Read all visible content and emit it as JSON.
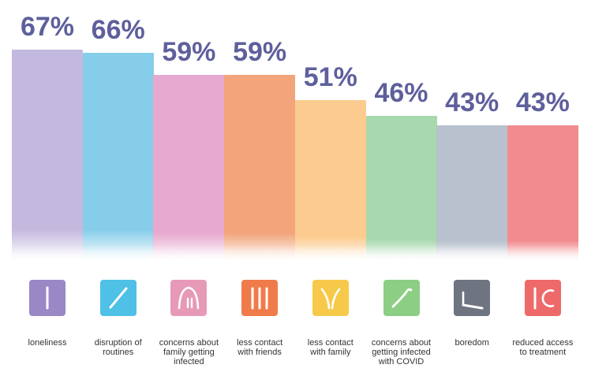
{
  "chart_data": {
    "type": "bar",
    "categories": [
      "loneliness",
      "disruption of routines",
      "concerns about family getting infected",
      "less contact with friends",
      "less contact with family",
      "concerns about getting infected with COVID",
      "boredom",
      "reduced access to treatment"
    ],
    "category_lines": [
      [
        "loneliness"
      ],
      [
        "disruption of",
        "routines"
      ],
      [
        "concerns about",
        "family getting",
        "infected"
      ],
      [
        "less contact",
        "with friends"
      ],
      [
        "less contact",
        "with family"
      ],
      [
        "concerns about",
        "getting infected",
        "with COVID"
      ],
      [
        "boredom"
      ],
      [
        "reduced access",
        "to treatment"
      ]
    ],
    "values": [
      67,
      66,
      59,
      59,
      51,
      46,
      43,
      43
    ],
    "value_labels": [
      "67%",
      "66%",
      "59%",
      "59%",
      "51%",
      "46%",
      "43%",
      "43%"
    ],
    "ylim": [
      0,
      100
    ],
    "grid": false,
    "legend": "none",
    "colors": {
      "value_text": "#5e5f9c",
      "bars": [
        "#c3b8de",
        "#86cdea",
        "#e7a9cf",
        "#f2a47a",
        "#fbcb8f",
        "#a8d8ae",
        "#b8c1cd",
        "#f28b8f"
      ],
      "tiles": [
        "#9a87c6",
        "#4fc0e6",
        "#e69ab7",
        "#f07b4a",
        "#f7c94b",
        "#8ccf84",
        "#6e7480",
        "#ee6a6a"
      ]
    },
    "icons": [
      "single-stroke-icon",
      "diagonal-stroke-icon",
      "arch-figures-icon",
      "three-strokes-icon",
      "diverging-strokes-icon",
      "check-curve-icon",
      "flat-line-icon",
      "one-and-circle-icon"
    ]
  }
}
